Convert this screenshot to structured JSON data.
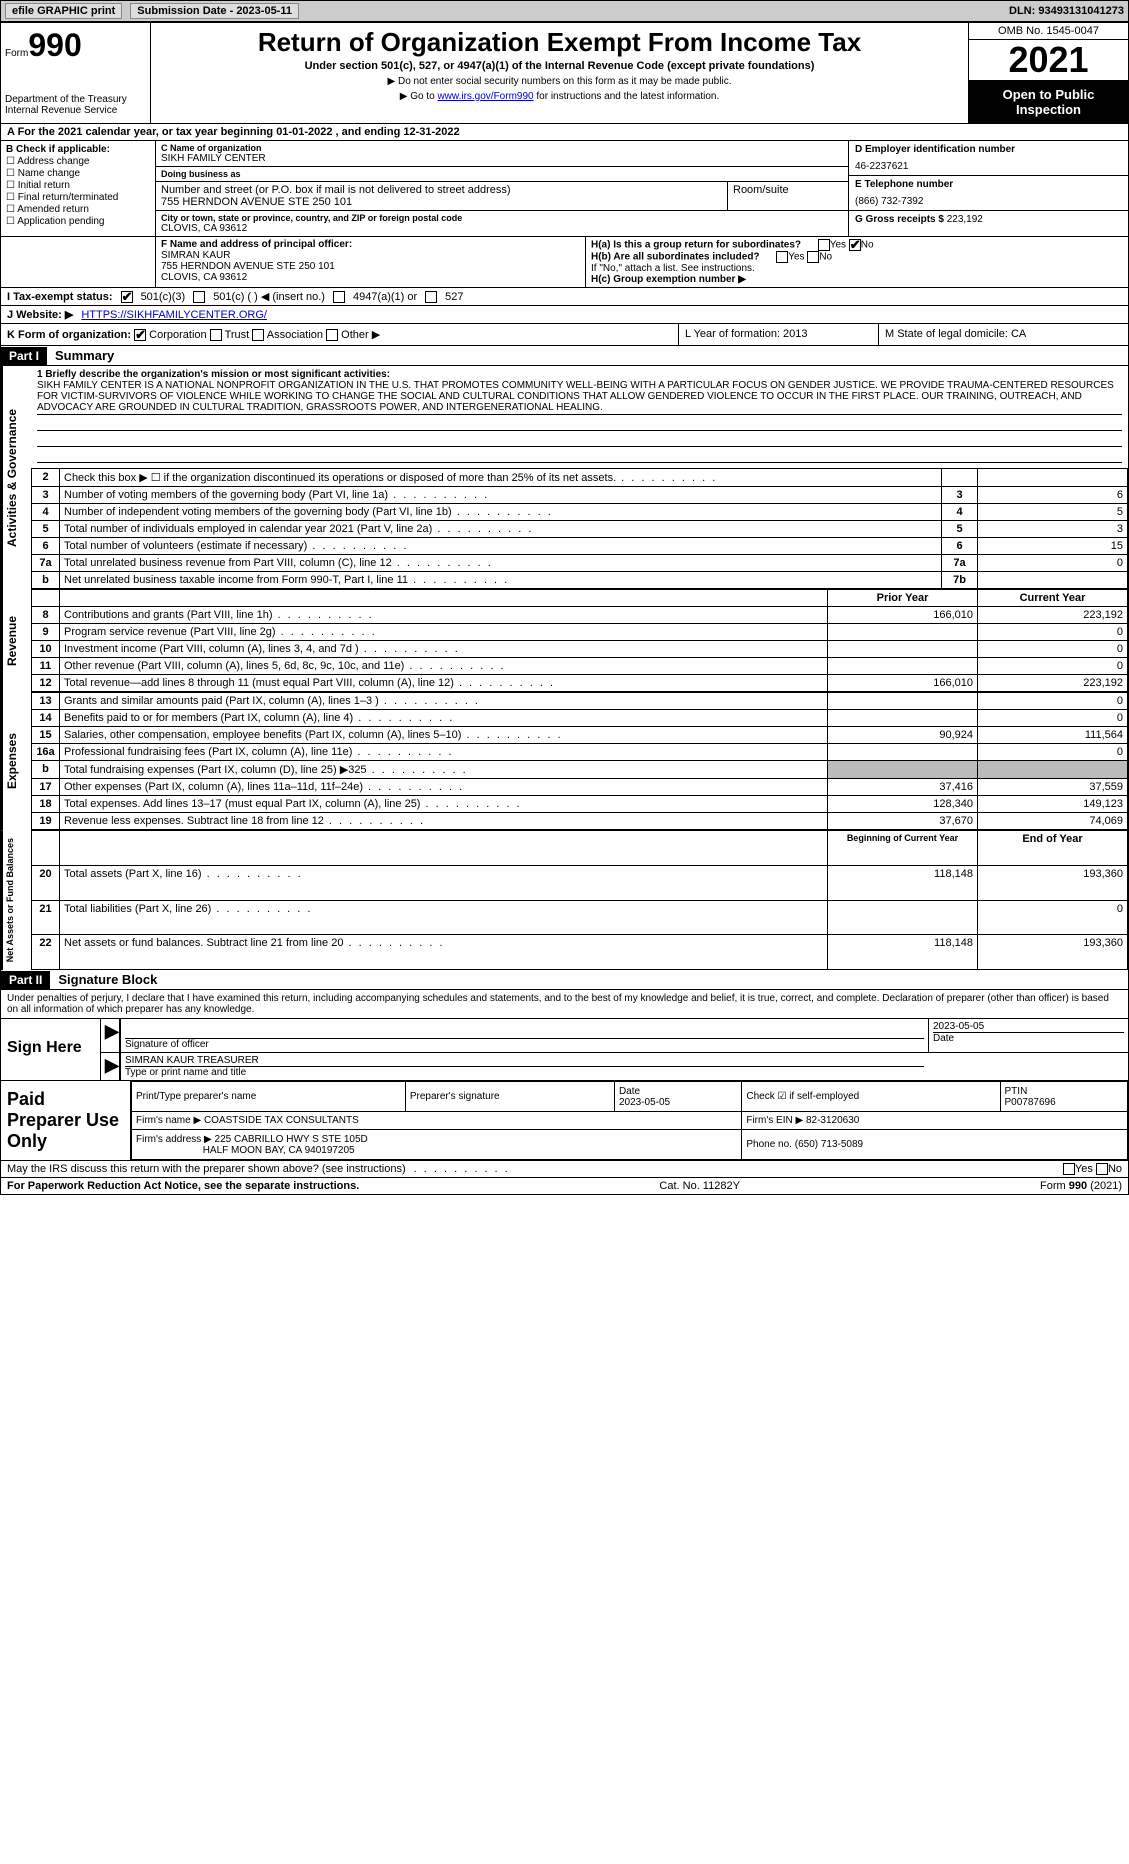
{
  "toolbar": {
    "efile": "efile GRAPHIC print",
    "submission": "Submission Date - 2023-05-11",
    "dln": "DLN: 93493131041273"
  },
  "header": {
    "form_word": "Form",
    "form_num": "990",
    "dept": "Department of the Treasury\nInternal Revenue Service",
    "title": "Return of Organization Exempt From Income Tax",
    "subtitle": "Under section 501(c), 527, or 4947(a)(1) of the Internal Revenue Code (except private foundations)",
    "note1": "▶ Do not enter social security numbers on this form as it may be made public.",
    "note2_pre": "▶ Go to ",
    "note2_link": "www.irs.gov/Form990",
    "note2_post": " for instructions and the latest information.",
    "omb": "OMB No. 1545-0047",
    "year": "2021",
    "open": "Open to Public Inspection"
  },
  "row_a": "A For the 2021 calendar year, or tax year beginning 01-01-2022   , and ending 12-31-2022",
  "col_b": {
    "title": "B Check if applicable:",
    "opts": [
      "Address change",
      "Name change",
      "Initial return",
      "Final return/terminated",
      "Amended return",
      "Application pending"
    ]
  },
  "col_c": {
    "name_h": "C Name of organization",
    "name": "SIKH FAMILY CENTER",
    "dba_h": "Doing business as",
    "dba": "",
    "addr_h": "Number and street (or P.O. box if mail is not delivered to street address)",
    "addr": "755 HERNDON AVENUE STE 250 101",
    "room_h": "Room/suite",
    "city_h": "City or town, state or province, country, and ZIP or foreign postal code",
    "city": "CLOVIS, CA  93612"
  },
  "col_d": {
    "ein_h": "D Employer identification number",
    "ein": "46-2237621",
    "tel_h": "E Telephone number",
    "tel": "(866) 732-7392",
    "gross_h": "G Gross receipts $",
    "gross": "223,192"
  },
  "sec_f": {
    "h": "F  Name and address of principal officer:",
    "name": "SIMRAN KAUR",
    "addr1": "755 HERNDON AVENUE STE 250 101",
    "addr2": "CLOVIS, CA  93612"
  },
  "sec_h": {
    "ha": "H(a)  Is this a group return for subordinates?",
    "hb": "H(b)  Are all subordinates included?",
    "hb_note": "If \"No,\" attach a list. See instructions.",
    "hc": "H(c)  Group exemption number ▶"
  },
  "row_i": {
    "label": "I  Tax-exempt status:",
    "o1": "501(c)(3)",
    "o2": "501(c) (  ) ◀ (insert no.)",
    "o3": "4947(a)(1) or",
    "o4": "527"
  },
  "row_j": {
    "label": "J  Website: ▶",
    "val": "HTTPS://SIKHFAMILYCENTER.ORG/"
  },
  "row_k": {
    "label": "K Form of organization:",
    "o1": "Corporation",
    "o2": "Trust",
    "o3": "Association",
    "o4": "Other ▶",
    "l": "L Year of formation: 2013",
    "m": "M State of legal domicile: CA"
  },
  "part1": {
    "hdr": "Part I",
    "title": "Summary"
  },
  "mission": {
    "q": "1  Briefly describe the organization's mission or most significant activities:",
    "text": "SIKH FAMILY CENTER IS A NATIONAL NONPROFIT ORGANIZATION IN THE U.S. THAT PROMOTES COMMUNITY WELL-BEING WITH A PARTICULAR FOCUS ON GENDER JUSTICE. WE PROVIDE TRAUMA-CENTERED RESOURCES FOR VICTIM-SURVIVORS OF VIOLENCE WHILE WORKING TO CHANGE THE SOCIAL AND CULTURAL CONDITIONS THAT ALLOW GENDERED VIOLENCE TO OCCUR IN THE FIRST PLACE. OUR TRAINING, OUTREACH, AND ADVOCACY ARE GROUNDED IN CULTURAL TRADITION, GRASSROOTS POWER, AND INTERGENERATIONAL HEALING."
  },
  "gov_rows": [
    {
      "n": "2",
      "d": "Check this box ▶ ☐  if the organization discontinued its operations or disposed of more than 25% of its net assets.",
      "box": "",
      "v": ""
    },
    {
      "n": "3",
      "d": "Number of voting members of the governing body (Part VI, line 1a)",
      "box": "3",
      "v": "6"
    },
    {
      "n": "4",
      "d": "Number of independent voting members of the governing body (Part VI, line 1b)",
      "box": "4",
      "v": "5"
    },
    {
      "n": "5",
      "d": "Total number of individuals employed in calendar year 2021 (Part V, line 2a)",
      "box": "5",
      "v": "3"
    },
    {
      "n": "6",
      "d": "Total number of volunteers (estimate if necessary)",
      "box": "6",
      "v": "15"
    },
    {
      "n": "7a",
      "d": "Total unrelated business revenue from Part VIII, column (C), line 12",
      "box": "7a",
      "v": "0"
    },
    {
      "n": "b",
      "d": "Net unrelated business taxable income from Form 990-T, Part I, line 11",
      "box": "7b",
      "v": ""
    }
  ],
  "rev_hdr": {
    "py": "Prior Year",
    "cy": "Current Year"
  },
  "rev_rows": [
    {
      "n": "8",
      "d": "Contributions and grants (Part VIII, line 1h)",
      "py": "166,010",
      "cy": "223,192"
    },
    {
      "n": "9",
      "d": "Program service revenue (Part VIII, line 2g)",
      "py": "",
      "cy": "0"
    },
    {
      "n": "10",
      "d": "Investment income (Part VIII, column (A), lines 3, 4, and 7d )",
      "py": "",
      "cy": "0"
    },
    {
      "n": "11",
      "d": "Other revenue (Part VIII, column (A), lines 5, 6d, 8c, 9c, 10c, and 11e)",
      "py": "",
      "cy": "0"
    },
    {
      "n": "12",
      "d": "Total revenue—add lines 8 through 11 (must equal Part VIII, column (A), line 12)",
      "py": "166,010",
      "cy": "223,192"
    }
  ],
  "exp_rows": [
    {
      "n": "13",
      "d": "Grants and similar amounts paid (Part IX, column (A), lines 1–3 )",
      "py": "",
      "cy": "0"
    },
    {
      "n": "14",
      "d": "Benefits paid to or for members (Part IX, column (A), line 4)",
      "py": "",
      "cy": "0"
    },
    {
      "n": "15",
      "d": "Salaries, other compensation, employee benefits (Part IX, column (A), lines 5–10)",
      "py": "90,924",
      "cy": "111,564"
    },
    {
      "n": "16a",
      "d": "Professional fundraising fees (Part IX, column (A), line 11e)",
      "py": "",
      "cy": "0"
    },
    {
      "n": "b",
      "d": "Total fundraising expenses (Part IX, column (D), line 25) ▶325",
      "py": "GRAY",
      "cy": "GRAY"
    },
    {
      "n": "17",
      "d": "Other expenses (Part IX, column (A), lines 11a–11d, 11f–24e)",
      "py": "37,416",
      "cy": "37,559"
    },
    {
      "n": "18",
      "d": "Total expenses. Add lines 13–17 (must equal Part IX, column (A), line 25)",
      "py": "128,340",
      "cy": "149,123"
    },
    {
      "n": "19",
      "d": "Revenue less expenses. Subtract line 18 from line 12",
      "py": "37,670",
      "cy": "74,069"
    }
  ],
  "na_hdr": {
    "py": "Beginning of Current Year",
    "cy": "End of Year"
  },
  "na_rows": [
    {
      "n": "20",
      "d": "Total assets (Part X, line 16)",
      "py": "118,148",
      "cy": "193,360"
    },
    {
      "n": "21",
      "d": "Total liabilities (Part X, line 26)",
      "py": "",
      "cy": "0"
    },
    {
      "n": "22",
      "d": "Net assets or fund balances. Subtract line 21 from line 20",
      "py": "118,148",
      "cy": "193,360"
    }
  ],
  "part2": {
    "hdr": "Part II",
    "title": "Signature Block"
  },
  "sig": {
    "decl": "Under penalties of perjury, I declare that I have examined this return, including accompanying schedules and statements, and to the best of my knowledge and belief, it is true, correct, and complete. Declaration of preparer (other than officer) is based on all information of which preparer has any knowledge.",
    "sign_here": "Sign Here",
    "sig_of": "Signature of officer",
    "date": "2023-05-05",
    "date_h": "Date",
    "name": "SIMRAN KAUR TREASURER",
    "name_h": "Type or print name and title"
  },
  "prep": {
    "hdr": "Paid Preparer Use Only",
    "h1": "Print/Type preparer's name",
    "h2": "Preparer's signature",
    "h3": "Date",
    "h4": "Check ☑ if self-employed",
    "h5": "PTIN",
    "date": "2023-05-05",
    "ptin": "P00787696",
    "firm_h": "Firm's name    ▶",
    "firm": "COASTSIDE TAX CONSULTANTS",
    "ein_h": "Firm's EIN ▶",
    "ein": "82-3120630",
    "addr_h": "Firm's address ▶",
    "addr1": "225 CABRILLO HWY S STE 105D",
    "addr2": "HALF MOON BAY, CA  940197205",
    "phone_h": "Phone no.",
    "phone": "(650) 713-5089"
  },
  "discuss": "May the IRS discuss this return with the preparer shown above? (see instructions)",
  "footer": {
    "l": "For Paperwork Reduction Act Notice, see the separate instructions.",
    "c": "Cat. No. 11282Y",
    "r": "Form 990 (2021)"
  },
  "vtabs": {
    "gov": "Activities & Governance",
    "rev": "Revenue",
    "exp": "Expenses",
    "na": "Net Assets or Fund Balances"
  }
}
